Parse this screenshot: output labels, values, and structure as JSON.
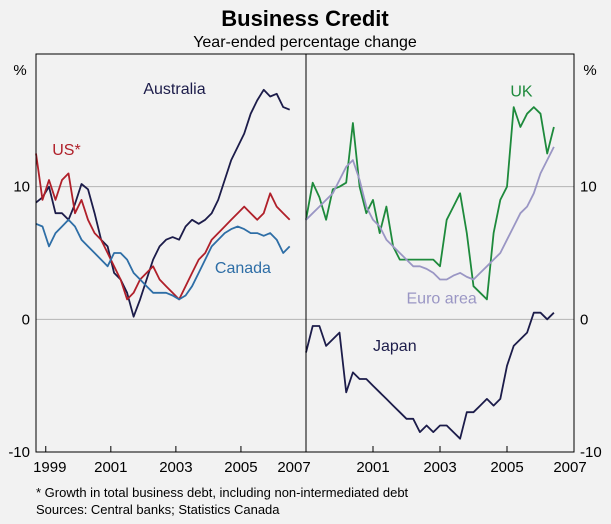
{
  "chart_data": {
    "type": "line",
    "title": "Business Credit",
    "subtitle": "Year-ended percentage change",
    "unit_left": "%",
    "unit_right": "%",
    "ylim": [
      -10,
      20
    ],
    "yticks": [
      "10",
      "0",
      "-10"
    ],
    "yticks_right": [
      "10",
      "0",
      "-10"
    ],
    "footnote": "*   Growth in total business debt, including non-intermediated debt",
    "sources": "Sources: Central banks; Statistics Canada",
    "colors": {
      "australia": "#1c1c4a",
      "us": "#b0202a",
      "canada": "#2e6ea6",
      "uk": "#1e8a3c",
      "euro": "#9a96c4",
      "japan": "#1c1c4a",
      "grid": "#b4b4b4",
      "background": "#f2f2f2"
    },
    "panels": [
      {
        "xlim": [
          1998.7,
          2007.0
        ],
        "xticks": [
          "1999",
          "2001",
          "2003",
          "2005",
          "2007"
        ],
        "series": [
          {
            "name": "Australia",
            "color_key": "australia",
            "x": [
              1998.7,
              1998.9,
              1999.1,
              1999.3,
              1999.5,
              1999.7,
              1999.9,
              2000.1,
              2000.3,
              2000.5,
              2000.7,
              2000.9,
              2001.1,
              2001.3,
              2001.5,
              2001.7,
              2001.9,
              2002.1,
              2002.3,
              2002.5,
              2002.7,
              2002.9,
              2003.1,
              2003.3,
              2003.5,
              2003.7,
              2003.9,
              2004.1,
              2004.3,
              2004.5,
              2004.7,
              2004.9,
              2005.1,
              2005.3,
              2005.5,
              2005.7,
              2005.9,
              2006.1,
              2006.3,
              2006.5
            ],
            "y": [
              8.8,
              9.2,
              10.0,
              8.0,
              8.0,
              7.5,
              8.7,
              10.2,
              9.8,
              8.0,
              6.0,
              5.5,
              3.5,
              3.0,
              2.0,
              0.2,
              1.5,
              3.0,
              4.5,
              5.5,
              6.0,
              6.2,
              6.0,
              7.0,
              7.5,
              7.2,
              7.5,
              8.0,
              9.0,
              10.5,
              12.0,
              13.0,
              14.0,
              15.5,
              16.5,
              17.3,
              16.8,
              17.0,
              16.0,
              15.8
            ]
          },
          {
            "name": "US*",
            "color_key": "us",
            "x": [
              1998.7,
              1998.9,
              1999.1,
              1999.3,
              1999.5,
              1999.7,
              1999.9,
              2000.1,
              2000.3,
              2000.5,
              2000.7,
              2000.9,
              2001.1,
              2001.3,
              2001.5,
              2001.7,
              2001.9,
              2002.1,
              2002.3,
              2002.5,
              2002.7,
              2002.9,
              2003.1,
              2003.3,
              2003.5,
              2003.7,
              2003.9,
              2004.1,
              2004.3,
              2004.5,
              2004.7,
              2004.9,
              2005.1,
              2005.3,
              2005.5,
              2005.7,
              2005.9,
              2006.1,
              2006.3,
              2006.5
            ],
            "y": [
              12.5,
              9.0,
              10.5,
              9.0,
              10.5,
              11.0,
              8.0,
              9.0,
              7.5,
              6.5,
              6.0,
              5.0,
              4.0,
              3.0,
              1.5,
              2.0,
              3.0,
              3.5,
              4.0,
              3.0,
              2.5,
              2.0,
              1.5,
              2.5,
              3.5,
              4.5,
              5.0,
              6.0,
              6.5,
              7.0,
              7.5,
              8.0,
              8.5,
              8.0,
              7.5,
              8.0,
              9.5,
              8.5,
              8.0,
              7.5
            ]
          },
          {
            "name": "Canada",
            "color_key": "canada",
            "x": [
              1998.7,
              1998.9,
              1999.1,
              1999.3,
              1999.5,
              1999.7,
              1999.9,
              2000.1,
              2000.3,
              2000.5,
              2000.7,
              2000.9,
              2001.1,
              2001.3,
              2001.5,
              2001.7,
              2001.9,
              2002.1,
              2002.3,
              2002.5,
              2002.7,
              2002.9,
              2003.1,
              2003.3,
              2003.5,
              2003.7,
              2003.9,
              2004.1,
              2004.3,
              2004.5,
              2004.7,
              2004.9,
              2005.1,
              2005.3,
              2005.5,
              2005.7,
              2005.9,
              2006.1,
              2006.3,
              2006.5
            ],
            "y": [
              7.2,
              7.0,
              5.5,
              6.5,
              7.0,
              7.5,
              7.0,
              6.0,
              5.5,
              5.0,
              4.5,
              4.0,
              5.0,
              5.0,
              4.5,
              3.5,
              3.0,
              2.5,
              2.0,
              2.0,
              2.0,
              1.8,
              1.5,
              1.8,
              2.5,
              3.5,
              4.5,
              5.5,
              6.0,
              6.5,
              6.8,
              7.0,
              6.8,
              6.5,
              6.5,
              6.3,
              6.5,
              6.0,
              5.0,
              5.5
            ]
          }
        ]
      },
      {
        "xlim": [
          1999.0,
          2007.0
        ],
        "xticks": [
          "2001",
          "2003",
          "2005",
          "2007"
        ],
        "series": [
          {
            "name": "UK",
            "color_key": "uk",
            "x": [
              1999.0,
              1999.2,
              1999.4,
              1999.6,
              1999.8,
              2000.0,
              2000.2,
              2000.4,
              2000.6,
              2000.8,
              2001.0,
              2001.2,
              2001.4,
              2001.6,
              2001.8,
              2002.0,
              2002.2,
              2002.4,
              2002.6,
              2002.8,
              2003.0,
              2003.2,
              2003.4,
              2003.6,
              2003.8,
              2004.0,
              2004.2,
              2004.4,
              2004.6,
              2004.8,
              2005.0,
              2005.2,
              2005.4,
              2005.6,
              2005.8,
              2006.0,
              2006.2,
              2006.4
            ],
            "y": [
              7.5,
              10.3,
              9.2,
              7.5,
              9.8,
              10.0,
              10.3,
              14.8,
              10.0,
              8.0,
              9.0,
              6.5,
              8.5,
              5.5,
              4.5,
              4.5,
              4.5,
              4.5,
              4.5,
              4.5,
              4.0,
              7.5,
              8.5,
              9.5,
              6.5,
              2.5,
              2.0,
              1.5,
              6.5,
              9.0,
              10.0,
              16.0,
              14.5,
              15.5,
              16.0,
              15.5,
              12.5,
              14.5
            ]
          },
          {
            "name": "Euro area",
            "color_key": "euro",
            "x": [
              1999.0,
              1999.2,
              1999.4,
              1999.6,
              1999.8,
              2000.0,
              2000.2,
              2000.4,
              2000.6,
              2000.8,
              2001.0,
              2001.2,
              2001.4,
              2001.6,
              2001.8,
              2002.0,
              2002.2,
              2002.4,
              2002.6,
              2002.8,
              2003.0,
              2003.2,
              2003.4,
              2003.6,
              2003.8,
              2004.0,
              2004.2,
              2004.4,
              2004.6,
              2004.8,
              2005.0,
              2005.2,
              2005.4,
              2005.6,
              2005.8,
              2006.0,
              2006.2,
              2006.4
            ],
            "y": [
              7.5,
              8.0,
              8.5,
              9.0,
              9.5,
              10.5,
              11.5,
              12.0,
              10.5,
              8.5,
              7.5,
              7.0,
              6.0,
              5.5,
              5.0,
              4.5,
              4.0,
              4.0,
              3.8,
              3.5,
              3.0,
              3.0,
              3.3,
              3.5,
              3.2,
              3.0,
              3.5,
              4.0,
              4.5,
              5.0,
              6.0,
              7.0,
              8.0,
              8.5,
              9.5,
              11.0,
              12.0,
              13.0
            ]
          },
          {
            "name": "Japan",
            "color_key": "japan",
            "x": [
              1999.0,
              1999.2,
              1999.4,
              1999.6,
              1999.8,
              2000.0,
              2000.2,
              2000.4,
              2000.6,
              2000.8,
              2001.0,
              2001.2,
              2001.4,
              2001.6,
              2001.8,
              2002.0,
              2002.2,
              2002.4,
              2002.6,
              2002.8,
              2003.0,
              2003.2,
              2003.4,
              2003.6,
              2003.8,
              2004.0,
              2004.2,
              2004.4,
              2004.6,
              2004.8,
              2005.0,
              2005.2,
              2005.4,
              2005.6,
              2005.8,
              2006.0,
              2006.2,
              2006.4
            ],
            "y": [
              -2.5,
              -0.5,
              -0.5,
              -2.0,
              -1.5,
              -1.0,
              -5.5,
              -4.0,
              -4.5,
              -4.5,
              -5.0,
              -5.5,
              -6.0,
              -6.5,
              -7.0,
              -7.5,
              -7.5,
              -8.5,
              -8.0,
              -8.5,
              -8.0,
              -8.0,
              -8.5,
              -9.0,
              -7.0,
              -7.0,
              -6.5,
              -6.0,
              -6.5,
              -6.0,
              -3.5,
              -2.0,
              -1.5,
              -1.0,
              0.5,
              0.5,
              0.0,
              0.5
            ]
          }
        ]
      }
    ]
  }
}
